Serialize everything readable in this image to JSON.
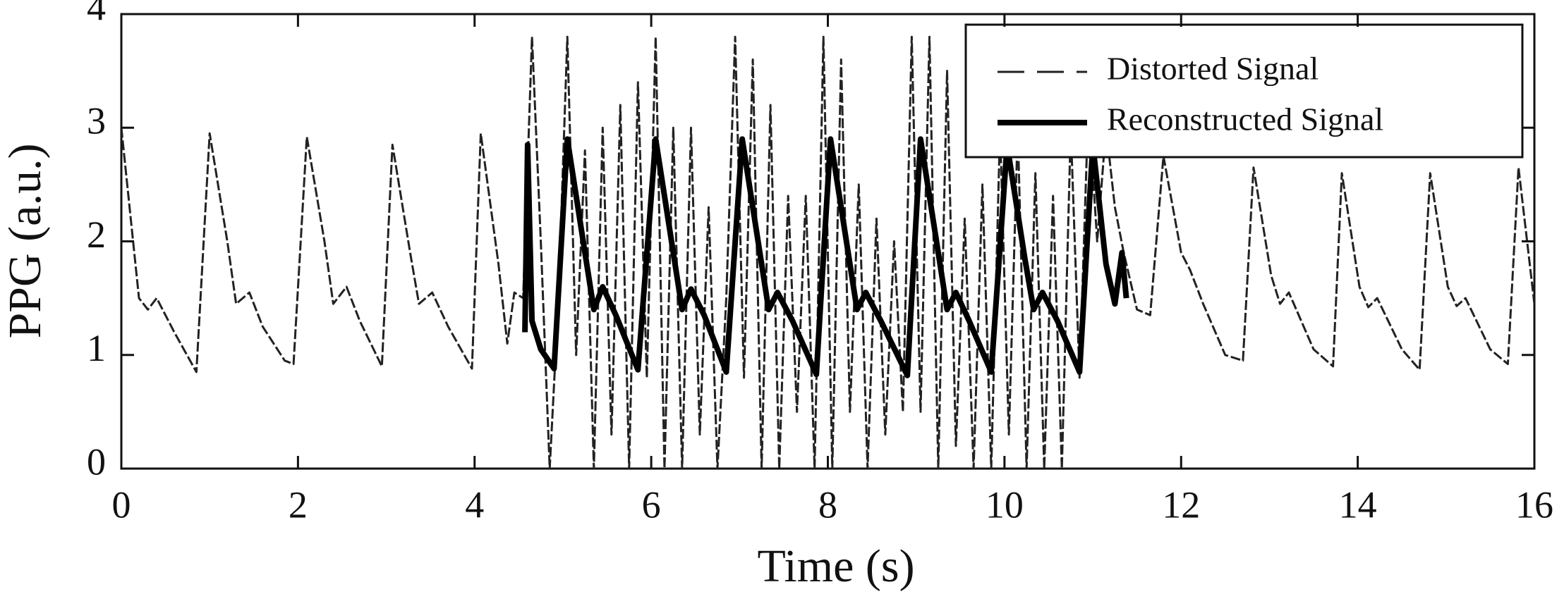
{
  "chart_data": {
    "type": "line",
    "xlabel": "Time (s)",
    "ylabel": "PPG (a.u.)",
    "xlim": [
      0,
      16
    ],
    "ylim": [
      0,
      4
    ],
    "xticks": [
      0,
      2,
      4,
      6,
      8,
      10,
      12,
      14,
      16
    ],
    "yticks": [
      0,
      1,
      2,
      3,
      4
    ],
    "legend": "upper right",
    "series": [
      {
        "name": "Distorted Signal",
        "color": "#222222",
        "dashed": true,
        "x": [
          0,
          0.2,
          0.3,
          0.4,
          0.6,
          0.85,
          1.0,
          1.2,
          1.3,
          1.45,
          1.6,
          1.85,
          1.95,
          2.1,
          2.3,
          2.4,
          2.55,
          2.7,
          2.95,
          3.07,
          3.27,
          3.37,
          3.52,
          3.7,
          3.97,
          4.07,
          4.27,
          4.37,
          4.45,
          4.55,
          4.65,
          4.75,
          4.85,
          4.95,
          5.05,
          5.15,
          5.25,
          5.35,
          5.45,
          5.55,
          5.65,
          5.75,
          5.85,
          5.95,
          6.05,
          6.15,
          6.25,
          6.35,
          6.45,
          6.55,
          6.65,
          6.75,
          6.85,
          6.95,
          7.05,
          7.15,
          7.25,
          7.35,
          7.45,
          7.55,
          7.65,
          7.75,
          7.85,
          7.95,
          8.05,
          8.15,
          8.25,
          8.35,
          8.45,
          8.55,
          8.65,
          8.75,
          8.85,
          8.95,
          9.05,
          9.15,
          9.25,
          9.35,
          9.45,
          9.55,
          9.65,
          9.75,
          9.85,
          9.95,
          10.05,
          10.15,
          10.25,
          10.35,
          10.45,
          10.55,
          10.65,
          10.75,
          10.85,
          10.95,
          11.05,
          11.15,
          11.25,
          11.35,
          11.5,
          11.65,
          11.8,
          12.0,
          12.1,
          12.25,
          12.5,
          12.7,
          12.82,
          13.02,
          13.12,
          13.22,
          13.5,
          13.72,
          13.82,
          14.02,
          14.12,
          14.22,
          14.5,
          14.7,
          14.82,
          15.02,
          15.12,
          15.22,
          15.5,
          15.7,
          15.82,
          16.0
        ],
        "values": [
          3.0,
          1.5,
          1.4,
          1.5,
          1.2,
          0.85,
          2.95,
          2.0,
          1.45,
          1.55,
          1.25,
          0.95,
          0.92,
          2.92,
          2.0,
          1.45,
          1.6,
          1.3,
          0.9,
          2.85,
          1.9,
          1.45,
          1.55,
          1.25,
          0.88,
          2.95,
          1.8,
          1.1,
          1.55,
          1.5,
          3.8,
          2.0,
          0,
          1.5,
          3.8,
          1.0,
          2.8,
          0,
          3.0,
          0.3,
          3.2,
          0,
          3.4,
          0.8,
          3.8,
          0,
          3.0,
          0,
          3.0,
          0.3,
          2.3,
          0,
          1.5,
          3.8,
          0.8,
          3.6,
          0,
          3.2,
          0,
          2.4,
          0.5,
          2.4,
          0,
          3.8,
          0,
          3.6,
          0.5,
          2.5,
          0,
          2.2,
          0.3,
          2.0,
          0.5,
          3.8,
          0.5,
          3.8,
          0,
          3.5,
          0.2,
          2.2,
          0,
          2.5,
          0,
          3.0,
          0.3,
          3.0,
          0,
          2.6,
          0,
          2.4,
          0,
          3.0,
          0.8,
          3.2,
          2.0,
          3.0,
          2.3,
          1.9,
          1.4,
          1.35,
          2.75,
          1.9,
          1.75,
          1.45,
          1.0,
          0.95,
          2.65,
          1.7,
          1.45,
          1.55,
          1.05,
          0.9,
          2.6,
          1.6,
          1.42,
          1.5,
          1.05,
          0.87,
          2.6,
          1.6,
          1.43,
          1.5,
          1.05,
          0.92,
          2.65,
          1.45
        ]
      },
      {
        "name": "Reconstructed Signal",
        "color": "#000000",
        "dashed": false,
        "x": [
          4.57,
          4.6,
          4.65,
          4.75,
          4.9,
          5.05,
          5.25,
          5.35,
          5.45,
          5.6,
          5.85,
          6.05,
          6.25,
          6.35,
          6.45,
          6.6,
          6.85,
          7.03,
          7.23,
          7.33,
          7.43,
          7.6,
          7.87,
          8.03,
          8.23,
          8.33,
          8.43,
          8.6,
          8.9,
          9.05,
          9.25,
          9.35,
          9.45,
          9.6,
          9.85,
          10.03,
          10.23,
          10.33,
          10.43,
          10.6,
          10.85,
          11.0,
          11.15,
          11.25,
          11.33,
          11.38
        ],
        "values": [
          1.2,
          2.85,
          1.3,
          1.05,
          0.88,
          2.9,
          1.9,
          1.4,
          1.6,
          1.35,
          0.87,
          2.9,
          1.9,
          1.4,
          1.58,
          1.35,
          0.85,
          2.9,
          1.9,
          1.4,
          1.55,
          1.3,
          0.83,
          2.9,
          1.9,
          1.4,
          1.55,
          1.3,
          0.82,
          2.9,
          1.9,
          1.4,
          1.55,
          1.3,
          0.85,
          2.85,
          1.85,
          1.4,
          1.55,
          1.3,
          0.85,
          2.85,
          1.8,
          1.45,
          1.9,
          1.5
        ]
      }
    ]
  }
}
